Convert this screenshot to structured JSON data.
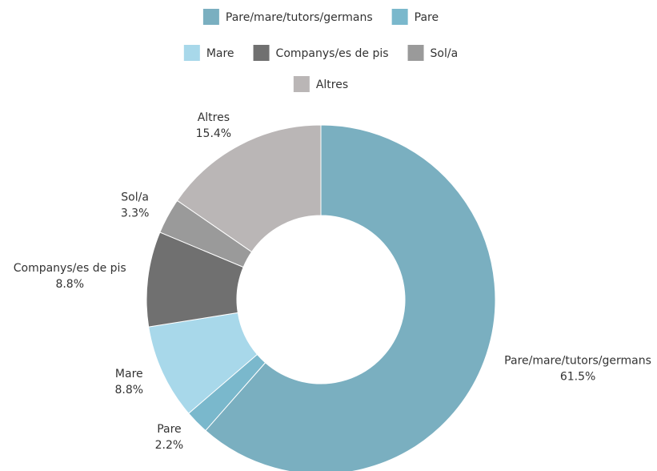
{
  "chart_data": {
    "type": "donut",
    "categories": [
      "Pare/mare/tutors/germans",
      "Pare",
      "Mare",
      "Companys/es de pis",
      "Sol/a",
      "Altres"
    ],
    "values": [
      61.5,
      2.2,
      8.8,
      8.8,
      3.3,
      15.4
    ],
    "value_labels": [
      "61.5%",
      "2.2%",
      "8.8%",
      "8.8%",
      "3.3%",
      "15.4%"
    ],
    "colors": [
      "#7aafc0",
      "#7ab8cc",
      "#a8d8ea",
      "#707070",
      "#9a9a9a",
      "#bab6b6"
    ],
    "legend": "top"
  }
}
